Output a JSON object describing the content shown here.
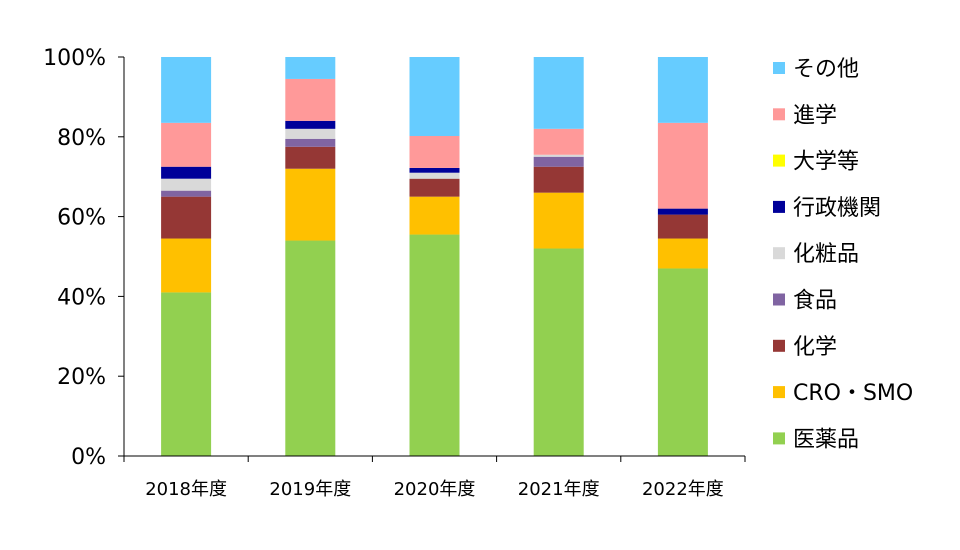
{
  "chart_data": {
    "type": "bar",
    "stacked": true,
    "categories": [
      "2018年度",
      "2019年度",
      "2020年度",
      "2021年度",
      "2022年度"
    ],
    "ylim": [
      0,
      100
    ],
    "yticks": [
      "0%",
      "20%",
      "40%",
      "60%",
      "80%",
      "100%"
    ],
    "ytick_values": [
      0,
      20,
      40,
      60,
      80,
      100
    ],
    "grid": false,
    "legend_position": "right",
    "series": [
      {
        "name": "医薬品",
        "color": "#92D050",
        "values": [
          41,
          54,
          55.5,
          52,
          47
        ]
      },
      {
        "name": "CRO・SMO",
        "color": "#FFC000",
        "values": [
          13.5,
          18,
          9.5,
          14,
          7.5
        ]
      },
      {
        "name": "化学",
        "color": "#953735",
        "values": [
          10.5,
          5.5,
          4.5,
          6.5,
          6
        ]
      },
      {
        "name": "食品",
        "color": "#8064A2",
        "values": [
          1.5,
          2,
          0,
          2.5,
          0
        ]
      },
      {
        "name": "化粧品",
        "color": "#D9D9D9",
        "values": [
          3,
          2.5,
          1.5,
          0.5,
          0
        ]
      },
      {
        "name": "行政機関",
        "color": "#000099",
        "values": [
          3,
          2,
          1.2,
          0,
          1.5
        ]
      },
      {
        "name": "大学等",
        "color": "#FFFF00",
        "values": [
          0,
          0,
          0,
          0,
          0
        ]
      },
      {
        "name": "進学",
        "color": "#FF9999",
        "values": [
          11,
          10.5,
          8,
          6.5,
          21.5
        ]
      },
      {
        "name": "その他",
        "color": "#66CCFF",
        "values": [
          16.5,
          5.5,
          19.8,
          18,
          16.5
        ]
      }
    ]
  }
}
